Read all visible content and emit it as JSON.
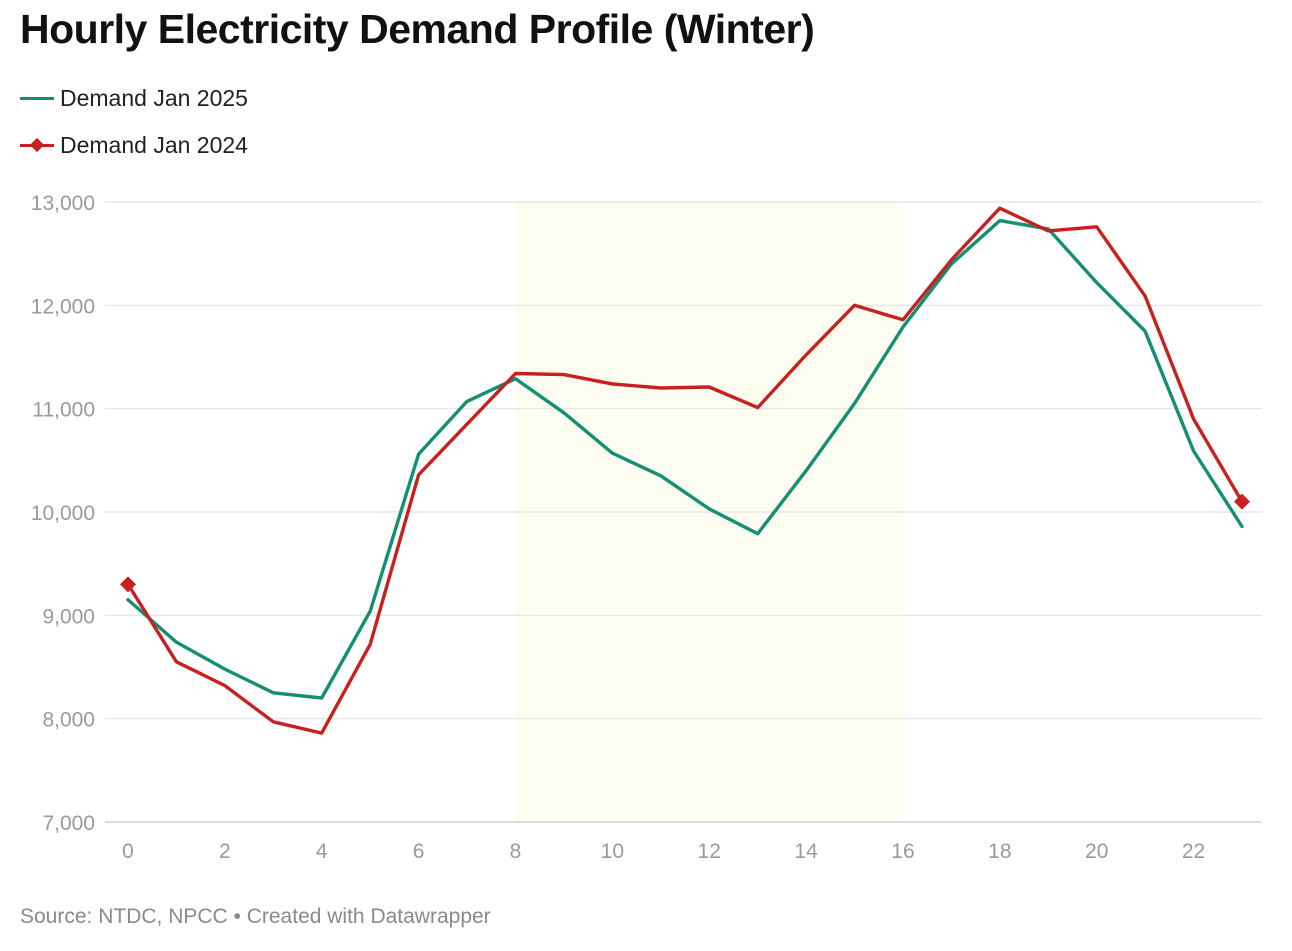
{
  "title": "Hourly Electricity Demand Profile (Winter)",
  "source_text": "Source: NTDC, NPCC • Created with Datawrapper",
  "colors": {
    "series_2025": "#138f72",
    "series_2024": "#c8201f",
    "highlight": "#fdfcf1",
    "grid": "#e2e2e2",
    "axis_text": "#9a9a9a"
  },
  "chart_data": {
    "type": "line",
    "title": "Hourly Electricity Demand Profile (Winter)",
    "xlabel": "",
    "ylabel": "",
    "x": [
      0,
      1,
      2,
      3,
      4,
      5,
      6,
      7,
      8,
      9,
      10,
      11,
      12,
      13,
      14,
      15,
      16,
      17,
      18,
      19,
      20,
      21,
      22,
      23
    ],
    "xlim": [
      0,
      23
    ],
    "ylim": [
      7000,
      13000
    ],
    "x_ticks": [
      0,
      2,
      4,
      6,
      8,
      10,
      12,
      14,
      16,
      18,
      20,
      22
    ],
    "x_tick_labels": [
      "0",
      "2",
      "4",
      "6",
      "8",
      "10",
      "12",
      "14",
      "16",
      "18",
      "20",
      "22"
    ],
    "y_ticks": [
      7000,
      8000,
      9000,
      10000,
      11000,
      12000,
      13000
    ],
    "y_tick_labels": [
      "7,000",
      "8,000",
      "9,000",
      "10,000",
      "11,000",
      "12,000",
      "13,000"
    ],
    "grid": true,
    "legend_position": "top-left",
    "highlight_range": [
      8,
      16
    ],
    "series": [
      {
        "name": "Demand Jan 2025",
        "marker": "none",
        "values": [
          9150,
          8740,
          8480,
          8250,
          8200,
          9040,
          10560,
          11070,
          11290,
          10960,
          10570,
          10350,
          10030,
          9790,
          10400,
          11050,
          11790,
          12400,
          12820,
          12740,
          12220,
          11750,
          10590,
          9860
        ]
      },
      {
        "name": "Demand Jan 2024",
        "marker": "diamond-endpoints",
        "values": [
          9300,
          8550,
          8320,
          7970,
          7860,
          8720,
          10360,
          10850,
          11340,
          11330,
          11240,
          11200,
          11210,
          11010,
          11520,
          12000,
          11860,
          12440,
          12940,
          12720,
          12760,
          12090,
          10900,
          10100
        ]
      }
    ]
  }
}
